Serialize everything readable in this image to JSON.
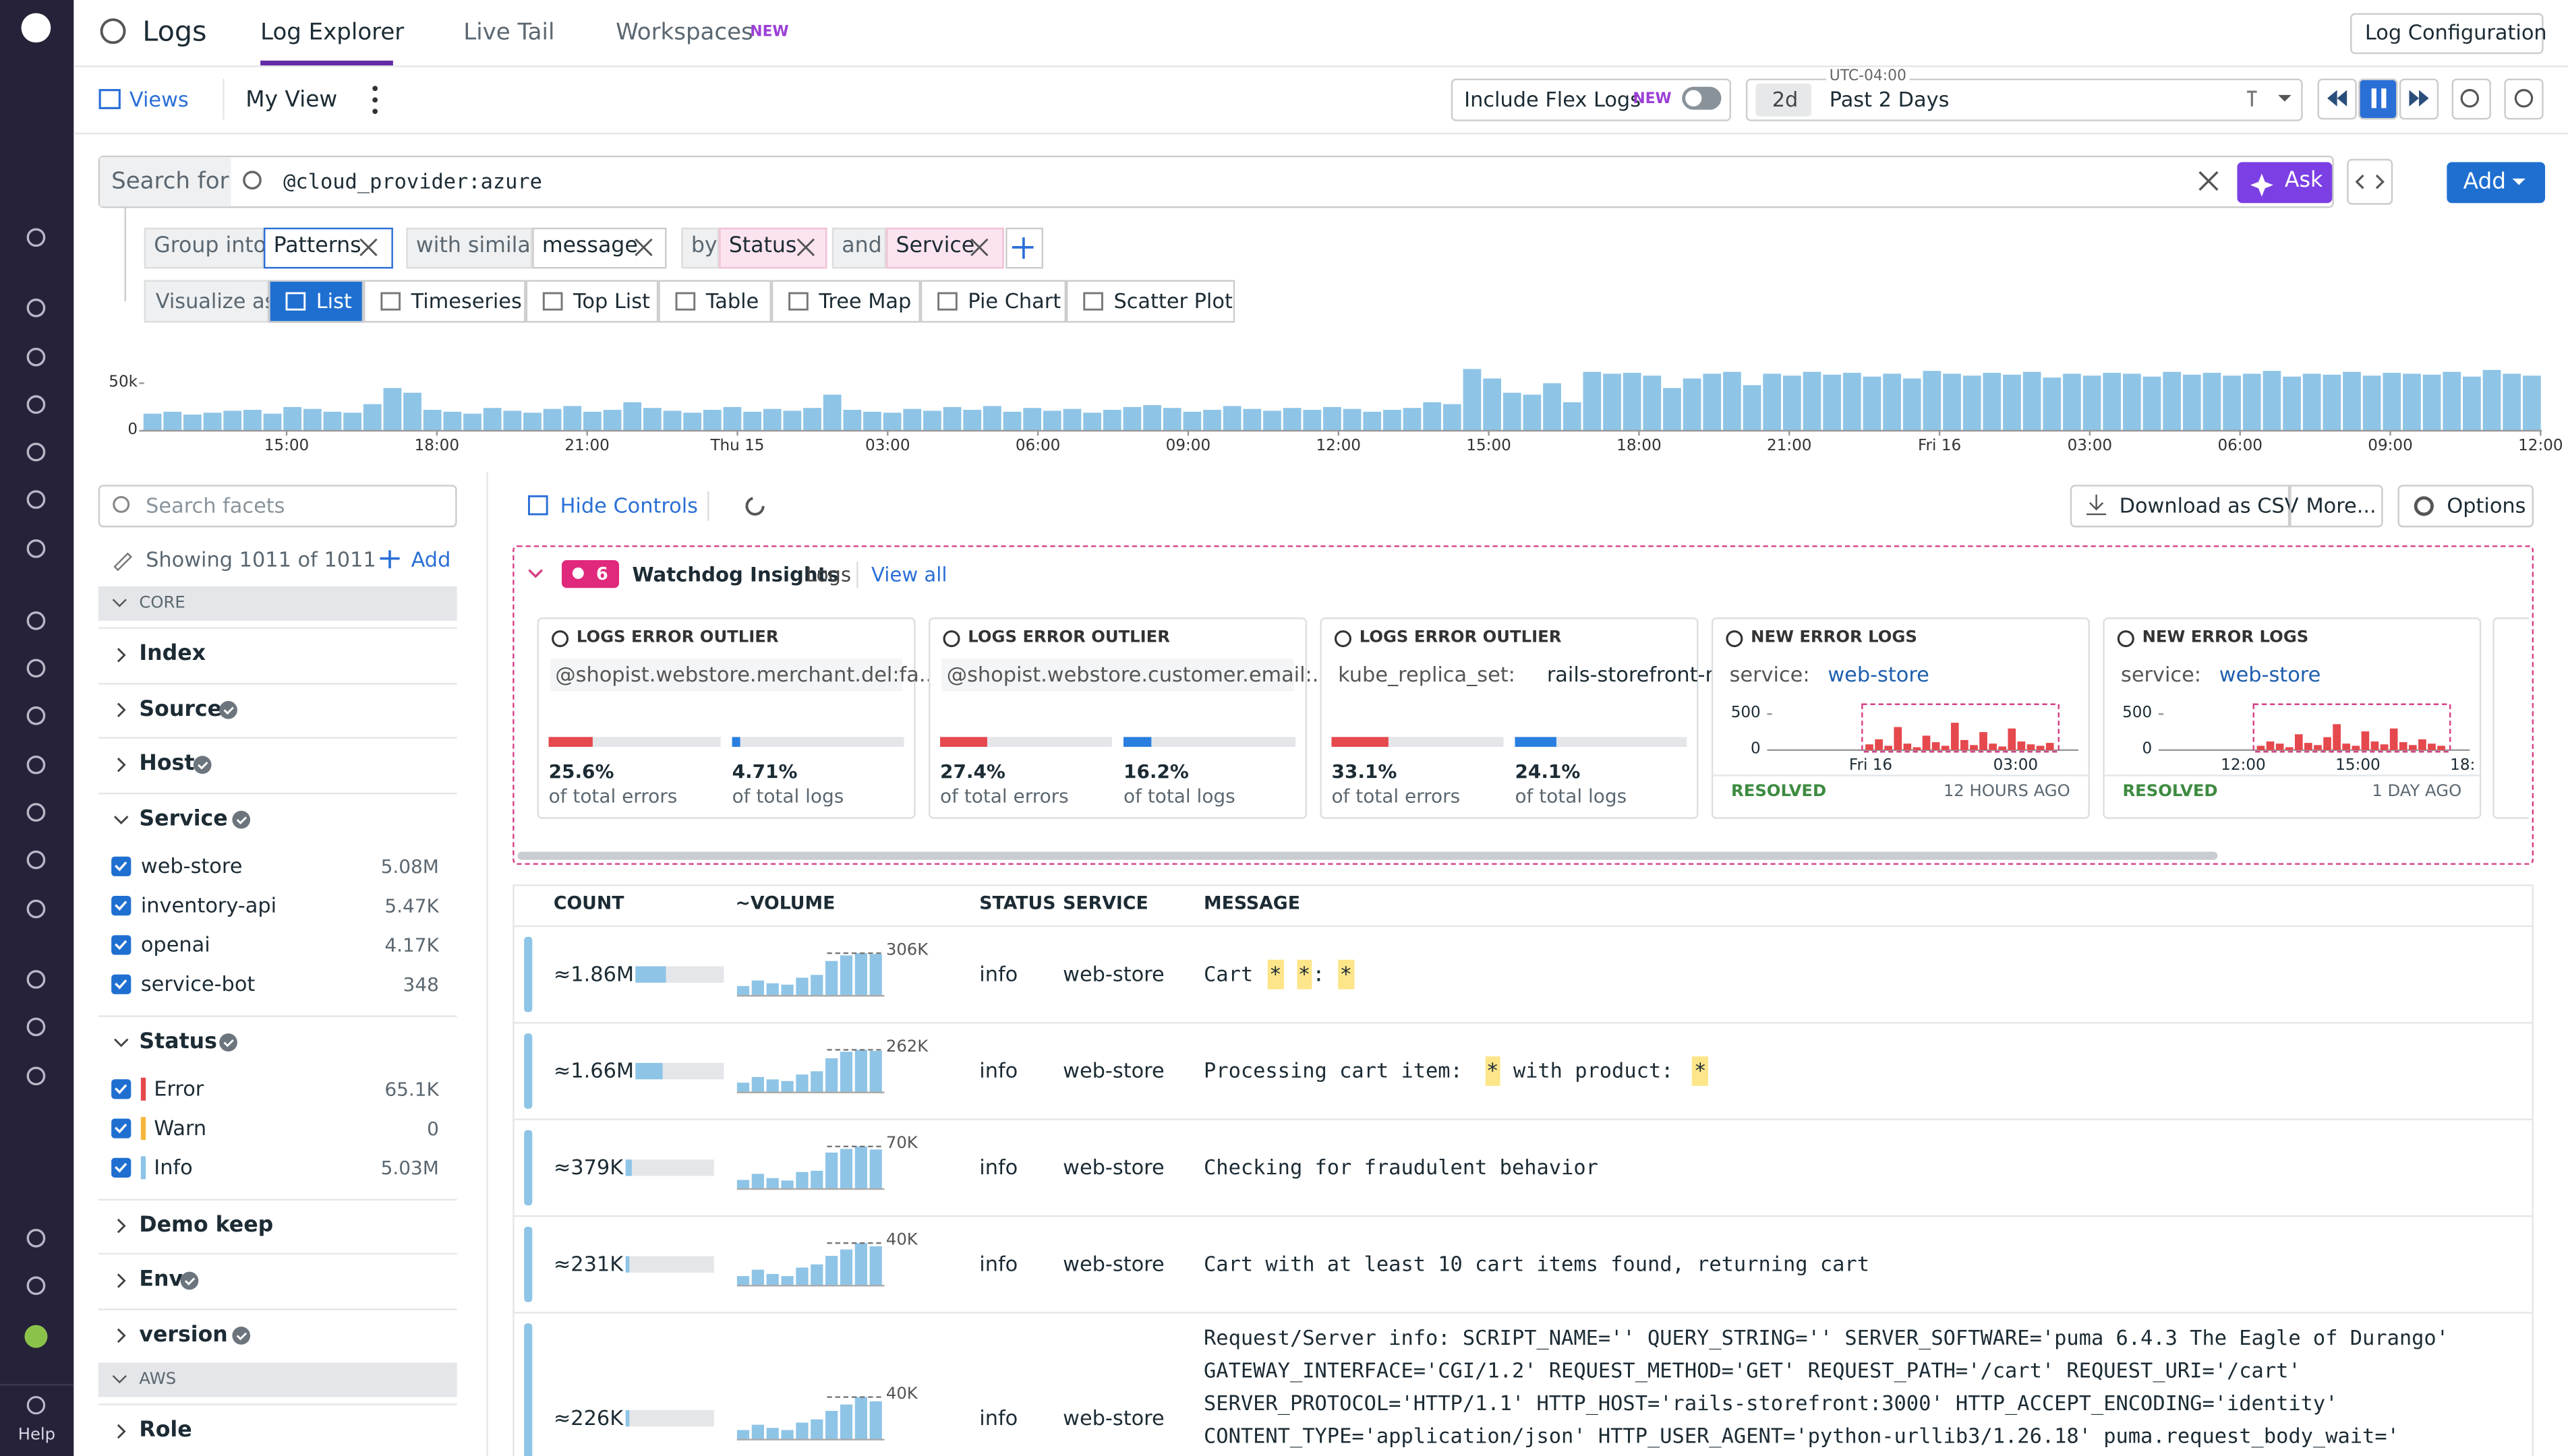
{
  "sidebar": {
    "help": "Help"
  },
  "header": {
    "title": "Logs",
    "tabs": [
      "Log Explorer",
      "Live Tail",
      "Workspaces"
    ],
    "tab_badge": "NEW",
    "config_button": "Log Configuration"
  },
  "toolbar": {
    "views": "Views",
    "view_name": "My View",
    "flex_label": "Include Flex Logs",
    "flex_badge": "NEW",
    "timezone": "UTC-04:00",
    "range_short": "2d",
    "range": "Past 2 Days"
  },
  "search": {
    "label": "Search for",
    "query": "@cloud_provider:azure",
    "ask": "Ask",
    "add": "Add"
  },
  "group": {
    "group_into": "Group into",
    "pattern": "Patterns",
    "with_similar": "with similar",
    "field": "message",
    "by": "by",
    "by_fields": [
      "Status",
      "Service"
    ],
    "and": "and"
  },
  "visualize": {
    "label": "Visualize as",
    "options": [
      "List",
      "Timeseries",
      "Top List",
      "Table",
      "Tree Map",
      "Pie Chart",
      "Scatter Plot"
    ],
    "selected": 0
  },
  "histogram": {
    "yticks": [
      0,
      {
        "value": 50000,
        "label": "50k"
      }
    ],
    "xlabels": [
      "15:00",
      "18:00",
      "21:00",
      "Thu 15",
      "03:00",
      "06:00",
      "09:00",
      "12:00",
      "15:00",
      "18:00",
      "21:00",
      "Fri 16",
      "03:00",
      "06:00",
      "09:00",
      "12:00"
    ],
    "values": [
      18000,
      20000,
      17000,
      19000,
      21000,
      22000,
      18000,
      25000,
      23000,
      20000,
      19000,
      28000,
      45000,
      40000,
      22000,
      20000,
      18000,
      24000,
      21000,
      19000,
      23000,
      26000,
      20000,
      22000,
      30000,
      24000,
      21000,
      19000,
      22000,
      25000,
      20000,
      23000,
      21000,
      24000,
      38000,
      22000,
      20000,
      19000,
      23000,
      21000,
      25000,
      22000,
      26000,
      20000,
      24000,
      21000,
      23000,
      19000,
      22000,
      25000,
      27000,
      24000,
      20000,
      22000,
      26000,
      23000,
      21000,
      24000,
      22000,
      25000,
      23000,
      20000,
      22000,
      24000,
      30000,
      28000,
      65000,
      55000,
      40000,
      38000,
      50000,
      30000,
      62000,
      60000,
      61000,
      58000,
      45000,
      55000,
      60000,
      62000,
      48000,
      60000,
      58000,
      62000,
      59000,
      61000,
      57000,
      60000,
      55000,
      63000,
      60000,
      58000,
      61000,
      59000,
      62000,
      56000,
      60000,
      58000,
      61000,
      60000,
      57000,
      62000,
      59000,
      61000,
      58000,
      60000,
      63000,
      57000,
      60000,
      59000,
      62000,
      58000,
      61000,
      60000,
      59000,
      62000,
      57000,
      64000,
      60000,
      58000
    ]
  },
  "facets": {
    "search": "Search facets",
    "showing": "Showing 1011 of 1011",
    "add": "Add",
    "items": [
      {
        "section": "CORE"
      },
      {
        "name": "Index"
      },
      {
        "name": "Source",
        "verified": true
      },
      {
        "name": "Host",
        "verified": true
      },
      {
        "name": "Service",
        "verified": true,
        "values": [
          {
            "name": "web-store",
            "count": "5.08M"
          },
          {
            "name": "inventory-api",
            "count": "5.47K"
          },
          {
            "name": "openai",
            "count": "4.17K"
          },
          {
            "name": "service-bot",
            "count": "348"
          }
        ]
      },
      {
        "name": "Status",
        "verified": true,
        "values": [
          {
            "name": "Error",
            "count": "65.1K",
            "color": "#e5484d"
          },
          {
            "name": "Warn",
            "count": "0",
            "color": "#f5b73b"
          },
          {
            "name": "Info",
            "count": "5.03M",
            "color": "#8dc3e8"
          }
        ]
      },
      {
        "name": "Demo keep"
      },
      {
        "name": "Env",
        "verified": true
      },
      {
        "name": "version",
        "verified": true
      },
      {
        "section": "AWS"
      },
      {
        "name": "Role"
      }
    ]
  },
  "controls": {
    "hide_controls": "Hide Controls",
    "download": "Download as CSV",
    "more": "More...",
    "options": "Options"
  },
  "watchdog": {
    "count": "6",
    "title": "Watchdog Insights",
    "subtitle": "Logs",
    "view_all": "View all",
    "cards": [
      {
        "kind": "LOGS ERROR OUTLIER",
        "query": "@shopist.webstore.merchant.del:fa...",
        "stats": [
          {
            "value": 25.6,
            "label": "25.6%",
            "caption": "of total errors"
          },
          {
            "value": 4.71,
            "label": "4.71%",
            "caption": "of total logs"
          }
        ]
      },
      {
        "kind": "LOGS ERROR OUTLIER",
        "query": "@shopist.webstore.customer.email:...",
        "stats": [
          {
            "value": 27.4,
            "label": "27.4%",
            "caption": "of total errors"
          },
          {
            "value": 16.2,
            "label": "16.2%",
            "caption": "of total logs"
          }
        ]
      },
      {
        "kind": "LOGS ERROR OUTLIER",
        "query_key": "kube_replica_set:",
        "query_value": "rails-storefront-ma...",
        "stats": [
          {
            "value": 33.1,
            "label": "33.1%",
            "caption": "of total errors"
          },
          {
            "value": 24.1,
            "label": "24.1%",
            "caption": "of total logs"
          }
        ]
      },
      {
        "kind": "NEW ERROR LOGS",
        "query_key": "service:",
        "query_value": "web-store",
        "yticks": [
          0,
          500
        ],
        "xlabels": [
          "Fri 16",
          "03:00"
        ],
        "values": [
          80,
          150,
          60,
          320,
          90,
          40,
          200,
          110,
          60,
          380,
          140,
          70,
          250,
          90,
          50,
          300,
          120,
          80,
          60,
          100
        ],
        "status": "RESOLVED",
        "age": "12 HOURS AGO"
      },
      {
        "kind": "NEW ERROR LOGS",
        "query_key": "service:",
        "query_value": "web-store",
        "yticks": [
          0,
          500
        ],
        "xlabels": [
          "12:00",
          "15:00",
          "18:"
        ],
        "values": [
          60,
          120,
          90,
          40,
          220,
          100,
          70,
          180,
          360,
          90,
          60,
          260,
          120,
          80,
          300,
          110,
          70,
          150,
          90,
          60
        ],
        "status": "RESOLVED",
        "age": "1 DAY AGO"
      }
    ]
  },
  "table": {
    "columns": [
      "COUNT",
      "~VOLUME",
      "STATUS",
      "SERVICE",
      "MESSAGE"
    ],
    "rows": [
      {
        "count": {
          "value": 1860000,
          "label": "≈1.86M"
        },
        "peak": {
          "value": 306000,
          "label": "306K"
        },
        "volume": [
          70000,
          110000,
          90000,
          80000,
          130000,
          150000,
          250000,
          290000,
          306000,
          300000
        ],
        "status": "info",
        "service": "web-store",
        "message": [
          "Cart ",
          "*",
          " ",
          "*",
          ": ",
          "*"
        ]
      },
      {
        "count": {
          "value": 1660000,
          "label": "≈1.66M"
        },
        "peak": {
          "value": 262000,
          "label": "262K"
        },
        "volume": [
          60000,
          95000,
          80000,
          70000,
          110000,
          130000,
          210000,
          250000,
          262000,
          255000
        ],
        "status": "info",
        "service": "web-store",
        "message": [
          "Processing cart item: ",
          "*",
          " with product: ",
          "*"
        ]
      },
      {
        "count": {
          "value": 379000,
          "label": "≈379K"
        },
        "peak": {
          "value": 70000,
          "label": "70K"
        },
        "volume": [
          15000,
          25000,
          18000,
          14000,
          28000,
          30000,
          60000,
          66000,
          70000,
          65000
        ],
        "status": "info",
        "service": "web-store",
        "message": [
          "Checking for fraudulent behavior"
        ]
      },
      {
        "count": {
          "value": 231000,
          "label": "≈231K"
        },
        "peak": {
          "value": 40000,
          "label": "40K"
        },
        "volume": [
          9000,
          15000,
          11000,
          9000,
          17000,
          20000,
          28000,
          34000,
          40000,
          37000
        ],
        "status": "info",
        "service": "web-store",
        "message": [
          "Cart with at least 10 cart items found, returning cart"
        ]
      },
      {
        "count": {
          "value": 226000,
          "label": "≈226K"
        },
        "peak": {
          "value": 40000,
          "label": "40K"
        },
        "volume": [
          9000,
          14000,
          11000,
          9000,
          16000,
          19000,
          27000,
          33000,
          40000,
          36000
        ],
        "status": "info",
        "service": "web-store",
        "message_lines": [
          "Request/Server info: SCRIPT_NAME='' QUERY_STRING='' SERVER_SOFTWARE='puma 6.4.3 The Eagle of Durango'",
          "GATEWAY_INTERFACE='CGI/1.2' REQUEST_METHOD='GET' REQUEST_PATH='/cart' REQUEST_URI='/cart'",
          "SERVER_PROTOCOL='HTTP/1.1' HTTP_HOST='rails-storefront:3000' HTTP_ACCEPT_ENCODING='identity'",
          "CONTENT_TYPE='application/json' HTTP_USER_AGENT='python-urllib3/1.26.18' puma.request_body_wait='"
        ]
      }
    ]
  }
}
